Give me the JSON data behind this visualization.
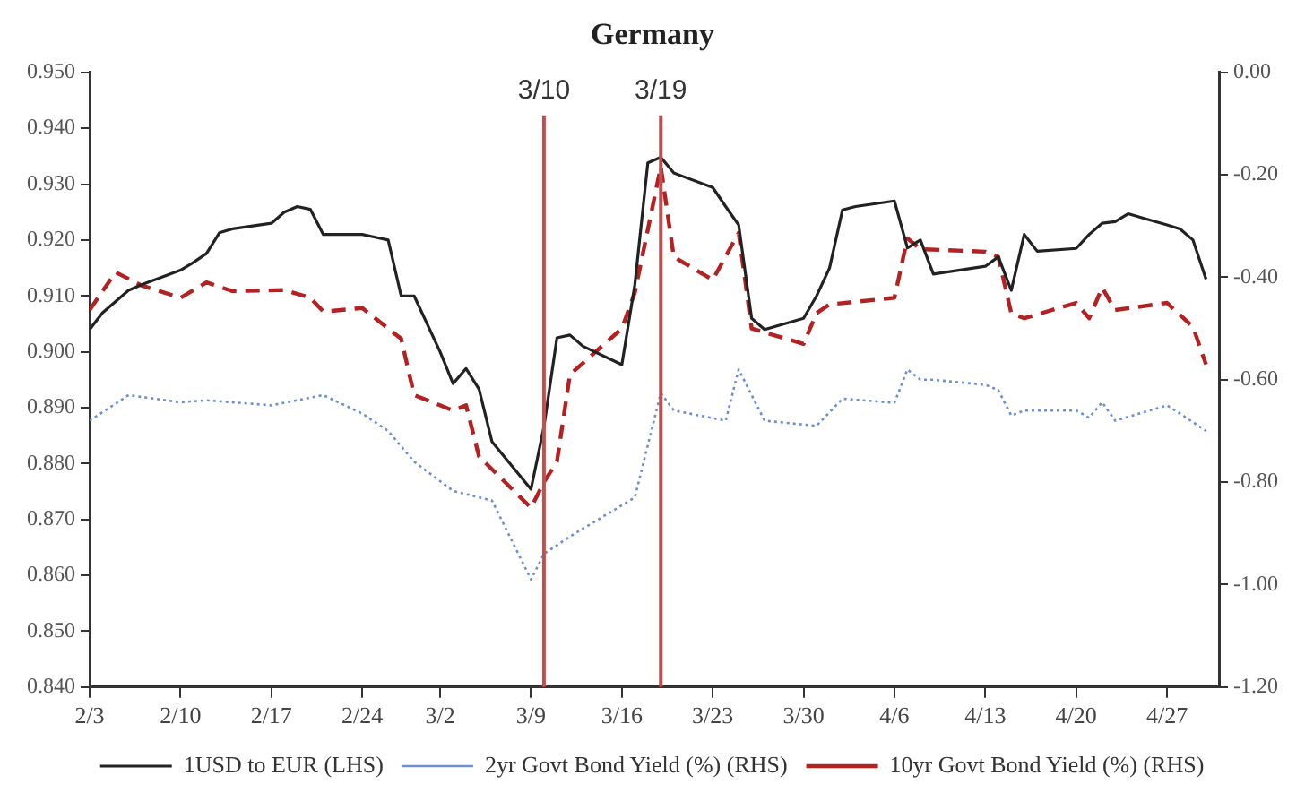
{
  "chart_data": {
    "type": "line",
    "title": "Germany",
    "xlim": [
      "--02-03",
      "--05-01"
    ],
    "xticks": [
      {
        "value": "--02-03",
        "label": "2/3"
      },
      {
        "value": "--02-10",
        "label": "2/10"
      },
      {
        "value": "--02-17",
        "label": "2/17"
      },
      {
        "value": "--02-24",
        "label": "2/24"
      },
      {
        "value": "--03-02",
        "label": "3/2"
      },
      {
        "value": "--03-09",
        "label": "3/9"
      },
      {
        "value": "--03-16",
        "label": "3/16"
      },
      {
        "value": "--03-23",
        "label": "3/23"
      },
      {
        "value": "--03-30",
        "label": "3/30"
      },
      {
        "value": "--04-06",
        "label": "4/6"
      },
      {
        "value": "--04-13",
        "label": "4/13"
      },
      {
        "value": "--04-20",
        "label": "4/20"
      },
      {
        "value": "--04-27",
        "label": "4/27"
      }
    ],
    "ylim": [
      0.84,
      0.95
    ],
    "yticks": [
      {
        "value": 0.84,
        "label": "0.840"
      },
      {
        "value": 0.85,
        "label": "0.850"
      },
      {
        "value": 0.86,
        "label": "0.860"
      },
      {
        "value": 0.87,
        "label": "0.870"
      },
      {
        "value": 0.88,
        "label": "0.880"
      },
      {
        "value": 0.89,
        "label": "0.890"
      },
      {
        "value": 0.9,
        "label": "0.900"
      },
      {
        "value": 0.91,
        "label": "0.910"
      },
      {
        "value": 0.92,
        "label": "0.920"
      },
      {
        "value": 0.93,
        "label": "0.930"
      },
      {
        "value": 0.94,
        "label": "0.940"
      },
      {
        "value": 0.95,
        "label": "0.950"
      }
    ],
    "y2lim": [
      -1.2,
      0
    ],
    "y2ticks": [
      {
        "value": -1.2,
        "label": "-1.20"
      },
      {
        "value": -1.0,
        "label": "-1.00"
      },
      {
        "value": -0.8,
        "label": "-0.80"
      },
      {
        "value": -0.6,
        "label": "-0.60"
      },
      {
        "value": -0.4,
        "label": "-0.40"
      },
      {
        "value": -0.2,
        "label": "-0.20"
      },
      {
        "value": 0,
        "label": "0.00"
      }
    ],
    "grid": false,
    "legend": "bottom",
    "marker": "none",
    "ref_lines": [
      {
        "axis": "x",
        "value": "--03-10",
        "label": "3/10",
        "color": "#c0504d"
      },
      {
        "axis": "x",
        "value": "--03-19",
        "label": "3/19",
        "color": "#c0504d"
      }
    ],
    "series": [
      {
        "name": "1USD to EUR (LHS)",
        "color": "#222222",
        "line_style": "solid",
        "x": [
          "--02-03",
          "--02-04",
          "--02-05",
          "--02-06",
          "--02-07",
          "--02-10",
          "--02-11",
          "--02-12",
          "--02-13",
          "--02-14",
          "--02-17",
          "--02-18",
          "--02-19",
          "--02-20",
          "--02-21",
          "--02-24",
          "--02-25",
          "--02-26",
          "--02-27",
          "--02-28",
          "--03-02",
          "--03-03",
          "--03-04",
          "--03-05",
          "--03-06",
          "--03-09",
          "--03-10",
          "--03-11",
          "--03-12",
          "--03-13",
          "--03-16",
          "--03-17",
          "--03-18",
          "--03-19",
          "--03-20",
          "--03-23",
          "--03-24",
          "--03-25",
          "--03-26",
          "--03-27",
          "--03-30",
          "--03-31",
          "--04-01",
          "--04-02",
          "--04-03",
          "--04-06",
          "--04-07",
          "--04-08",
          "--04-09",
          "--04-13",
          "--04-14",
          "--04-15",
          "--04-16",
          "--04-17",
          "--04-20",
          "--04-21",
          "--04-22",
          "--04-23",
          "--04-24",
          "--04-27",
          "--04-28",
          "--04-29",
          "--04-30"
        ],
        "values": [
          0.904,
          0.907,
          0.909,
          0.911,
          0.912,
          0.9146,
          0.916,
          0.9176,
          0.9213,
          0.922,
          0.923,
          0.925,
          0.926,
          0.9255,
          0.921,
          0.921,
          0.9205,
          0.92,
          0.91,
          0.91,
          0.9,
          0.8943,
          0.897,
          0.8933,
          0.8839,
          0.8754,
          0.8866,
          0.9025,
          0.903,
          0.901,
          0.8977,
          0.912,
          0.9338,
          0.9348,
          0.932,
          0.9294,
          0.926,
          0.9227,
          0.906,
          0.904,
          0.906,
          0.91,
          0.915,
          0.9254,
          0.926,
          0.927,
          0.9186,
          0.92,
          0.9139,
          0.9153,
          0.917,
          0.911,
          0.921,
          0.918,
          0.9185,
          0.921,
          0.923,
          0.9233,
          0.9247,
          0.9227,
          0.922,
          0.92,
          0.913
        ]
      },
      {
        "name": "2yr Govt Bond Yield (%) (RHS)",
        "color": "#6f8fcf",
        "line_style": "dotted",
        "axis": "y2",
        "x": [
          "--02-03",
          "--02-06",
          "--02-10",
          "--02-12",
          "--02-17",
          "--02-21",
          "--02-24",
          "--02-26",
          "--02-28",
          "--03-03",
          "--03-06",
          "--03-09",
          "--03-10",
          "--03-12",
          "--03-17",
          "--03-19",
          "--03-20",
          "--03-24",
          "--03-25",
          "--03-27",
          "--03-31",
          "--04-02",
          "--04-06",
          "--04-07",
          "--04-08",
          "--04-09",
          "--04-13",
          "--04-14",
          "--04-15",
          "--04-16",
          "--04-20",
          "--04-21",
          "--04-22",
          "--04-23",
          "--04-27",
          "--04-28",
          "--04-30"
        ],
        "values": [
          -0.68,
          -0.63,
          -0.644,
          -0.64,
          -0.65,
          -0.63,
          -0.666,
          -0.7,
          -0.76,
          -0.817,
          -0.836,
          -0.99,
          -0.94,
          -0.906,
          -0.83,
          -0.626,
          -0.66,
          -0.68,
          -0.58,
          -0.68,
          -0.69,
          -0.637,
          -0.645,
          -0.58,
          -0.6,
          -0.6,
          -0.61,
          -0.62,
          -0.67,
          -0.66,
          -0.66,
          -0.674,
          -0.644,
          -0.68,
          -0.65,
          -0.666,
          -0.7
        ]
      },
      {
        "name": "10yr Govt Bond Yield (%) (RHS)",
        "color": "#b22222",
        "line_style": "dashed",
        "axis": "y2",
        "x": [
          "--02-03",
          "--02-05",
          "--02-07",
          "--02-10",
          "--02-12",
          "--02-14",
          "--02-18",
          "--02-20",
          "--02-21",
          "--02-24",
          "--02-26",
          "--02-27",
          "--02-28",
          "--03-03",
          "--03-04",
          "--03-05",
          "--03-09",
          "--03-10",
          "--03-11",
          "--03-12",
          "--03-16",
          "--03-17",
          "--03-19",
          "--03-20",
          "--03-23",
          "--03-25",
          "--03-26",
          "--03-30",
          "--03-31",
          "--04-01",
          "--04-06",
          "--04-07",
          "--04-08",
          "--04-13",
          "--04-14",
          "--04-15",
          "--04-16",
          "--04-20",
          "--04-21",
          "--04-22",
          "--04-23",
          "--04-27",
          "--04-29",
          "--04-30"
        ],
        "values": [
          -0.464,
          -0.39,
          -0.416,
          -0.44,
          -0.41,
          -0.427,
          -0.425,
          -0.44,
          -0.467,
          -0.46,
          -0.5,
          -0.52,
          -0.63,
          -0.66,
          -0.65,
          -0.75,
          -0.85,
          -0.8,
          -0.76,
          -0.59,
          -0.5,
          -0.43,
          -0.184,
          -0.36,
          -0.405,
          -0.313,
          -0.5,
          -0.53,
          -0.47,
          -0.453,
          -0.44,
          -0.324,
          -0.345,
          -0.35,
          -0.36,
          -0.47,
          -0.48,
          -0.45,
          -0.48,
          -0.42,
          -0.464,
          -0.45,
          -0.497,
          -0.57
        ]
      }
    ]
  }
}
